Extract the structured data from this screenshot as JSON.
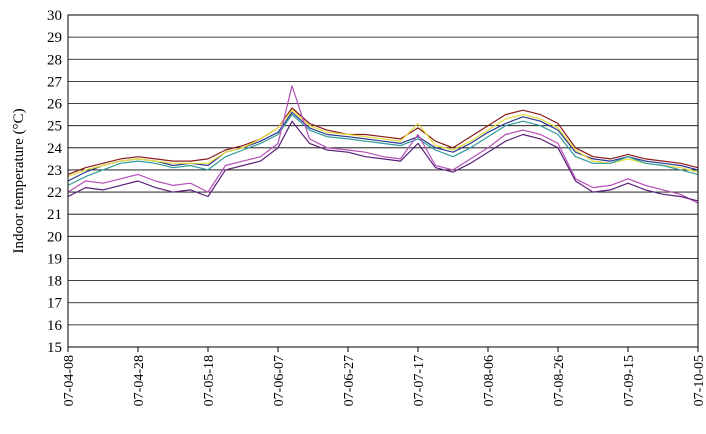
{
  "chart_data": {
    "type": "line",
    "title": "",
    "xlabel": "",
    "ylabel": "Indoor temperature (°C)",
    "ylim": [
      15,
      30
    ],
    "yticks": [
      15,
      16,
      17,
      18,
      19,
      20,
      21,
      22,
      23,
      24,
      25,
      26,
      27,
      28,
      29,
      30
    ],
    "xlim": [
      "2007-04-08",
      "2007-10-05"
    ],
    "xtick_labels": [
      "07-04-08",
      "07-04-28",
      "07-05-18",
      "07-06-07",
      "07-06-27",
      "07-07-17",
      "07-08-06",
      "07-08-26",
      "07-09-15",
      "07-10-05"
    ],
    "grid": "horizontal",
    "legend": "none",
    "series": [
      {
        "color": "#2b3990",
        "x": [
          "2007-04-08",
          "2007-04-13",
          "2007-04-18",
          "2007-04-23",
          "2007-04-28",
          "2007-05-03",
          "2007-05-08",
          "2007-05-13",
          "2007-05-18",
          "2007-05-23",
          "2007-05-28",
          "2007-06-02",
          "2007-06-07",
          "2007-06-11",
          "2007-06-16",
          "2007-06-21",
          "2007-06-27",
          "2007-07-02",
          "2007-07-07",
          "2007-07-12",
          "2007-07-17",
          "2007-07-22",
          "2007-07-27",
          "2007-08-01",
          "2007-08-06",
          "2007-08-11",
          "2007-08-16",
          "2007-08-21",
          "2007-08-26",
          "2007-08-31",
          "2007-09-05",
          "2007-09-10",
          "2007-09-15",
          "2007-09-20",
          "2007-09-25",
          "2007-09-30",
          "2007-10-05"
        ],
        "values": [
          22.5,
          22.9,
          23.2,
          23.4,
          23.5,
          23.4,
          23.2,
          23.3,
          23.2,
          23.8,
          24.0,
          24.3,
          24.7,
          25.6,
          24.9,
          24.6,
          24.5,
          24.4,
          24.3,
          24.2,
          24.5,
          24.0,
          23.8,
          24.2,
          24.7,
          25.1,
          25.4,
          25.2,
          24.8,
          23.8,
          23.5,
          23.4,
          23.6,
          23.4,
          23.3,
          23.2,
          23.0
        ]
      },
      {
        "color": "#8b1a1a",
        "x": [
          "2007-04-08",
          "2007-04-13",
          "2007-04-18",
          "2007-04-23",
          "2007-04-28",
          "2007-05-03",
          "2007-05-08",
          "2007-05-13",
          "2007-05-18",
          "2007-05-23",
          "2007-05-28",
          "2007-06-02",
          "2007-06-07",
          "2007-06-11",
          "2007-06-16",
          "2007-06-21",
          "2007-06-27",
          "2007-07-02",
          "2007-07-07",
          "2007-07-12",
          "2007-07-17",
          "2007-07-22",
          "2007-07-27",
          "2007-08-01",
          "2007-08-06",
          "2007-08-11",
          "2007-08-16",
          "2007-08-21",
          "2007-08-26",
          "2007-08-31",
          "2007-09-05",
          "2007-09-10",
          "2007-09-15",
          "2007-09-20",
          "2007-09-25",
          "2007-09-30",
          "2007-10-05"
        ],
        "values": [
          22.8,
          23.1,
          23.3,
          23.5,
          23.6,
          23.5,
          23.4,
          23.4,
          23.5,
          23.9,
          24.1,
          24.4,
          24.9,
          25.8,
          25.1,
          24.8,
          24.6,
          24.6,
          24.5,
          24.4,
          24.9,
          24.3,
          24.0,
          24.5,
          25.0,
          25.5,
          25.7,
          25.5,
          25.1,
          24.0,
          23.6,
          23.5,
          23.7,
          23.5,
          23.4,
          23.3,
          23.1
        ]
      },
      {
        "color": "#e6dd3a",
        "x": [
          "2007-04-08",
          "2007-04-13",
          "2007-04-18",
          "2007-04-23",
          "2007-04-28",
          "2007-05-03",
          "2007-05-08",
          "2007-05-13",
          "2007-05-18",
          "2007-05-23",
          "2007-05-28",
          "2007-06-02",
          "2007-06-07",
          "2007-06-11",
          "2007-06-16",
          "2007-06-21",
          "2007-06-27",
          "2007-07-02",
          "2007-07-07",
          "2007-07-12",
          "2007-07-17",
          "2007-07-22",
          "2007-07-27",
          "2007-08-01",
          "2007-08-06",
          "2007-08-11",
          "2007-08-16",
          "2007-08-21",
          "2007-08-26",
          "2007-08-31",
          "2007-09-05",
          "2007-09-10",
          "2007-09-15",
          "2007-09-20",
          "2007-09-25",
          "2007-09-30",
          "2007-10-05"
        ],
        "values": [
          22.7,
          23.0,
          23.2,
          23.4,
          23.5,
          23.4,
          23.3,
          23.3,
          23.3,
          23.8,
          24.0,
          24.4,
          24.9,
          25.7,
          25.0,
          24.7,
          24.6,
          24.5,
          24.4,
          24.3,
          25.1,
          24.1,
          23.9,
          24.3,
          24.8,
          25.3,
          25.5,
          25.3,
          24.9,
          23.9,
          23.4,
          23.3,
          23.5,
          23.3,
          23.2,
          23.1,
          22.9
        ]
      },
      {
        "color": "#2e9b9b",
        "x": [
          "2007-04-08",
          "2007-04-13",
          "2007-04-18",
          "2007-04-23",
          "2007-04-28",
          "2007-05-03",
          "2007-05-08",
          "2007-05-13",
          "2007-05-18",
          "2007-05-23",
          "2007-05-28",
          "2007-06-02",
          "2007-06-07",
          "2007-06-11",
          "2007-06-16",
          "2007-06-21",
          "2007-06-27",
          "2007-07-02",
          "2007-07-07",
          "2007-07-12",
          "2007-07-17",
          "2007-07-22",
          "2007-07-27",
          "2007-08-01",
          "2007-08-06",
          "2007-08-11",
          "2007-08-16",
          "2007-08-21",
          "2007-08-26",
          "2007-08-31",
          "2007-09-05",
          "2007-09-10",
          "2007-09-15",
          "2007-09-20",
          "2007-09-25",
          "2007-09-30",
          "2007-10-05"
        ],
        "values": [
          22.3,
          22.7,
          23.0,
          23.3,
          23.4,
          23.3,
          23.1,
          23.2,
          23.0,
          23.6,
          23.9,
          24.2,
          24.6,
          25.5,
          24.8,
          24.5,
          24.4,
          24.3,
          24.2,
          24.1,
          24.4,
          23.9,
          23.6,
          24.0,
          24.5,
          25.0,
          25.2,
          25.0,
          24.6,
          23.6,
          23.3,
          23.3,
          23.6,
          23.3,
          23.2,
          23.0,
          22.8
        ]
      },
      {
        "color": "#b64fb9",
        "x": [
          "2007-04-08",
          "2007-04-13",
          "2007-04-18",
          "2007-04-23",
          "2007-04-28",
          "2007-05-03",
          "2007-05-08",
          "2007-05-13",
          "2007-05-18",
          "2007-05-23",
          "2007-05-28",
          "2007-06-02",
          "2007-06-07",
          "2007-06-11",
          "2007-06-16",
          "2007-06-21",
          "2007-06-27",
          "2007-07-02",
          "2007-07-07",
          "2007-07-12",
          "2007-07-17",
          "2007-07-22",
          "2007-07-27",
          "2007-08-01",
          "2007-08-06",
          "2007-08-11",
          "2007-08-16",
          "2007-08-21",
          "2007-08-26",
          "2007-08-31",
          "2007-09-05",
          "2007-09-10",
          "2007-09-15",
          "2007-09-20",
          "2007-09-25",
          "2007-09-30",
          "2007-10-05"
        ],
        "values": [
          22.0,
          22.5,
          22.4,
          22.6,
          22.8,
          22.5,
          22.3,
          22.4,
          22.0,
          23.2,
          23.4,
          23.6,
          24.2,
          26.8,
          24.4,
          24.0,
          23.9,
          23.8,
          23.6,
          23.5,
          24.6,
          23.2,
          23.0,
          23.5,
          24.0,
          24.6,
          24.8,
          24.6,
          24.2,
          22.6,
          22.2,
          22.3,
          22.6,
          22.3,
          22.1,
          21.9,
          21.5
        ]
      },
      {
        "color": "#5a1f7a",
        "x": [
          "2007-04-08",
          "2007-04-13",
          "2007-04-18",
          "2007-04-23",
          "2007-04-28",
          "2007-05-03",
          "2007-05-08",
          "2007-05-13",
          "2007-05-18",
          "2007-05-23",
          "2007-05-28",
          "2007-06-02",
          "2007-06-07",
          "2007-06-11",
          "2007-06-16",
          "2007-06-21",
          "2007-06-27",
          "2007-07-02",
          "2007-07-07",
          "2007-07-12",
          "2007-07-17",
          "2007-07-22",
          "2007-07-27",
          "2007-08-01",
          "2007-08-06",
          "2007-08-11",
          "2007-08-16",
          "2007-08-21",
          "2007-08-26",
          "2007-08-31",
          "2007-09-05",
          "2007-09-10",
          "2007-09-15",
          "2007-09-20",
          "2007-09-25",
          "2007-09-30",
          "2007-10-05"
        ],
        "values": [
          21.8,
          22.2,
          22.1,
          22.3,
          22.5,
          22.2,
          22.0,
          22.1,
          21.8,
          23.0,
          23.2,
          23.4,
          24.0,
          25.2,
          24.2,
          23.9,
          23.8,
          23.6,
          23.5,
          23.4,
          24.2,
          23.1,
          22.9,
          23.3,
          23.8,
          24.3,
          24.6,
          24.4,
          24.0,
          22.5,
          22.0,
          22.1,
          22.4,
          22.1,
          21.9,
          21.8,
          21.6
        ]
      }
    ]
  }
}
